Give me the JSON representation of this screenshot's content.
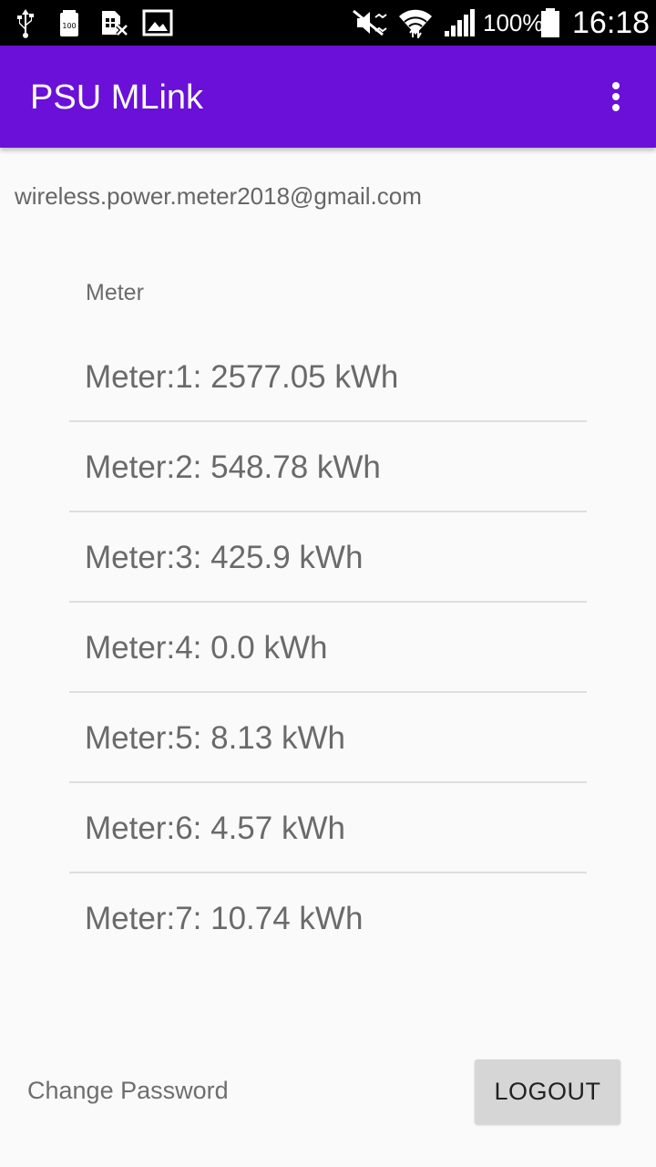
{
  "status_bar": {
    "battery_percent": "100%",
    "time": "16:18",
    "icons": [
      "usb-icon",
      "battery-saver-icon",
      "sim-blocked-icon",
      "image-icon",
      "mute-icon",
      "wifi-icon",
      "signal-icon",
      "battery-icon"
    ]
  },
  "app_bar": {
    "title": "PSU MLink",
    "color": "#6a10d8",
    "menu_icon": "more-vert-icon"
  },
  "account": {
    "email": "wireless.power.meter2018@gmail.com"
  },
  "meters": {
    "header": "Meter",
    "items": [
      {
        "label": "Meter:1: 2577.05 kWh"
      },
      {
        "label": "Meter:2: 548.78 kWh"
      },
      {
        "label": "Meter:3: 425.9 kWh"
      },
      {
        "label": "Meter:4: 0.0 kWh"
      },
      {
        "label": "Meter:5: 8.13 kWh"
      },
      {
        "label": "Meter:6: 4.57 kWh"
      },
      {
        "label": "Meter:7: 10.74 kWh"
      }
    ]
  },
  "footer": {
    "change_password": "Change Password",
    "logout": "LOGOUT"
  }
}
